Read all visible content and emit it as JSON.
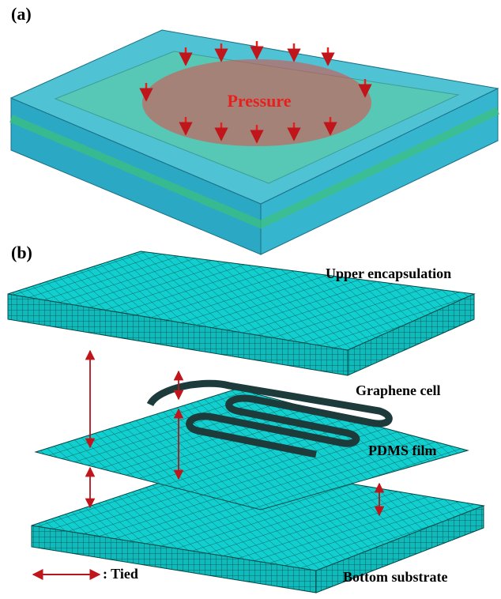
{
  "panel_a": {
    "label": "(a)",
    "annotation": "Pressure"
  },
  "panel_b": {
    "label": "(b)",
    "layers": [
      "Upper encapsulation",
      "Graphene cell",
      "PDMS film",
      "Bottom substrate"
    ]
  },
  "legend": {
    "label": ": Tied"
  }
}
